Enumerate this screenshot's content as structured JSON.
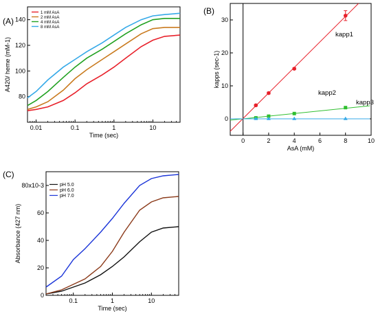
{
  "chart_data": [
    {
      "panel": "(A)",
      "type": "line",
      "xlabel": "Time (sec)",
      "ylabel": "A420/ heme (mM-1)",
      "xscale": "log",
      "xlim": [
        0.006,
        50
      ],
      "ylim": [
        60,
        150
      ],
      "xticks": [
        0.01,
        0.1,
        1,
        10
      ],
      "xtick_labels": [
        "0.01",
        "0.1",
        "1",
        "10"
      ],
      "yticks": [
        80,
        100,
        120,
        140
      ],
      "ytick_labels": [
        "80",
        "100",
        "120",
        "140"
      ],
      "legend_position": "top-left",
      "series": [
        {
          "name": "1 mM AsA",
          "color": "#e8202a",
          "x": [
            0.006,
            0.01,
            0.02,
            0.05,
            0.1,
            0.2,
            0.5,
            1,
            2,
            5,
            10,
            20,
            50
          ],
          "y": [
            69,
            70,
            72,
            77,
            83,
            90,
            97,
            103,
            110,
            119,
            124,
            127,
            128
          ]
        },
        {
          "name": "2 mM AsA",
          "color": "#c97a1e",
          "x": [
            0.006,
            0.01,
            0.02,
            0.05,
            0.1,
            0.2,
            0.5,
            1,
            2,
            5,
            10,
            20,
            50
          ],
          "y": [
            70,
            72,
            76,
            85,
            94,
            101,
            109,
            115,
            121,
            129,
            133,
            134,
            134
          ]
        },
        {
          "name": "4 mM AsA",
          "color": "#21a121",
          "x": [
            0.006,
            0.01,
            0.02,
            0.05,
            0.1,
            0.2,
            0.5,
            1,
            2,
            5,
            10,
            20,
            50
          ],
          "y": [
            73,
            77,
            84,
            95,
            103,
            110,
            117,
            123,
            129,
            136,
            140,
            141,
            141
          ]
        },
        {
          "name": "8 mM AsA",
          "color": "#35a9e8",
          "x": [
            0.006,
            0.01,
            0.02,
            0.05,
            0.1,
            0.2,
            0.5,
            1,
            2,
            5,
            10,
            20,
            50
          ],
          "y": [
            79,
            84,
            93,
            103,
            109,
            115,
            122,
            128,
            134,
            140,
            143,
            144,
            145
          ]
        }
      ]
    },
    {
      "panel": "(B)",
      "type": "scatter",
      "xlabel": "AsA (mM)",
      "ylabel": "kapps (sec-1)",
      "xlim": [
        -1,
        10
      ],
      "ylim": [
        -5,
        35
      ],
      "xticks": [
        0,
        2,
        4,
        6,
        8,
        10
      ],
      "xtick_labels": [
        "0",
        "2",
        "4",
        "6",
        "8",
        "10"
      ],
      "yticks": [
        0,
        10,
        20,
        30
      ],
      "ytick_labels": [
        "0",
        "10",
        "20",
        "30"
      ],
      "series": [
        {
          "name": "kapp1",
          "color": "#e8202a",
          "marker": "circle",
          "x": [
            1,
            2,
            4,
            8
          ],
          "y": [
            4.1,
            7.8,
            15.2,
            31.3
          ],
          "error": [
            0.3,
            0.3,
            0.3,
            1.5
          ],
          "fit": {
            "slope": 3.87,
            "intercept": 0.1
          }
        },
        {
          "name": "kapp2",
          "color": "#2fbf2f",
          "marker": "square",
          "x": [
            1,
            2,
            4,
            8
          ],
          "y": [
            0.3,
            0.8,
            1.6,
            3.4
          ],
          "fit": {
            "slope": 0.4,
            "intercept": 0.0
          }
        },
        {
          "name": "kapp3",
          "color": "#35a9e8",
          "marker": "triangle",
          "x": [
            1,
            2,
            4,
            8
          ],
          "y": [
            0.05,
            0.05,
            0.05,
            0.05
          ],
          "fit": {
            "slope": 0.0,
            "intercept": 0.0
          }
        }
      ]
    },
    {
      "panel": "(C)",
      "type": "line",
      "xlabel": "Time (sec)",
      "ylabel": "Absorbance (427 nm)",
      "xscale": "log",
      "xlim": [
        0.02,
        50
      ],
      "ylim": [
        0,
        0.09
      ],
      "xticks": [
        0.1,
        1,
        10
      ],
      "xtick_labels": [
        "0.1",
        "1",
        "10"
      ],
      "yticks": [
        0,
        0.02,
        0.04,
        0.06,
        0.08
      ],
      "ytick_labels": [
        "0",
        "20",
        "40",
        "60",
        "80x10-3"
      ],
      "legend_position": "top-left",
      "series": [
        {
          "name": "pH 5.0",
          "color": "#111111",
          "x": [
            0.02,
            0.05,
            0.1,
            0.2,
            0.5,
            1,
            2,
            5,
            10,
            20,
            50
          ],
          "y": [
            0.001,
            0.003,
            0.006,
            0.009,
            0.015,
            0.021,
            0.028,
            0.039,
            0.046,
            0.049,
            0.05
          ]
        },
        {
          "name": "pH 6.0",
          "color": "#8b3a1a",
          "x": [
            0.02,
            0.05,
            0.1,
            0.2,
            0.5,
            1,
            2,
            5,
            10,
            20,
            50
          ],
          "y": [
            0.001,
            0.004,
            0.008,
            0.012,
            0.021,
            0.032,
            0.046,
            0.062,
            0.068,
            0.071,
            0.072
          ]
        },
        {
          "name": "pH 7.0",
          "color": "#1a34d8",
          "x": [
            0.02,
            0.05,
            0.1,
            0.2,
            0.5,
            1,
            2,
            5,
            10,
            20,
            50
          ],
          "y": [
            0.006,
            0.014,
            0.026,
            0.034,
            0.046,
            0.056,
            0.067,
            0.08,
            0.085,
            0.087,
            0.088
          ]
        }
      ]
    }
  ]
}
